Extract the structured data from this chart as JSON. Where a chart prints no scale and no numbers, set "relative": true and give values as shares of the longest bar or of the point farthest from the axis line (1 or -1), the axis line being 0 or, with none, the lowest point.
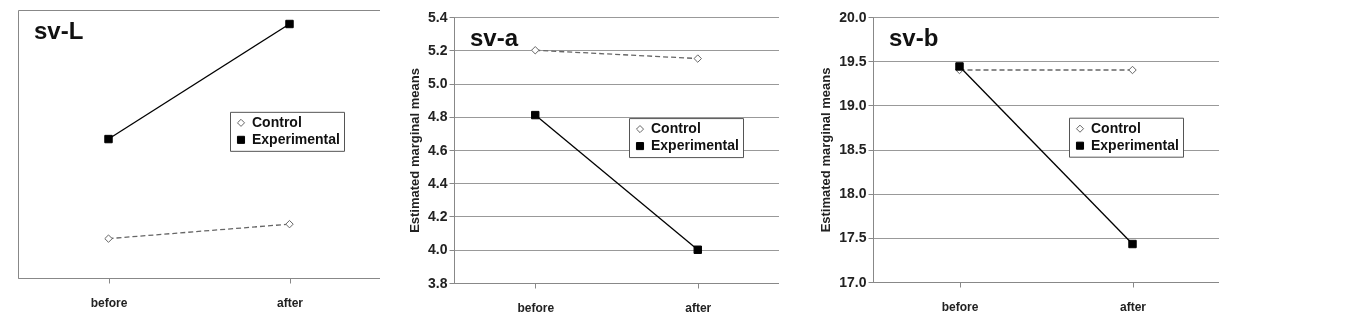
{
  "chart_data": [
    {
      "type": "line",
      "title": "sv-L",
      "categories": [
        "before",
        "after"
      ],
      "relative": true,
      "legend": "right",
      "grid": false,
      "series": [
        {
          "name": "Control",
          "color": "#666666",
          "marker": "diamond",
          "line_style": "dashed",
          "values": [
            0.155,
            0.212
          ]
        },
        {
          "name": "Experimental",
          "color": "#000000",
          "marker": "square",
          "line_style": "solid",
          "values": [
            0.547,
            1
          ]
        }
      ]
    },
    {
      "type": "line",
      "title": "sv-a",
      "ylabel": "Estimated marginal means",
      "categories": [
        "before",
        "after"
      ],
      "ylim": [
        3.8,
        5.4
      ],
      "yticks": [
        {
          "value": 3.8,
          "label": "3.8"
        },
        {
          "value": 4.0,
          "label": "4.0"
        },
        {
          "value": 4.2,
          "label": "4.2"
        },
        {
          "value": 4.4,
          "label": "4.4"
        },
        {
          "value": 4.6,
          "label": "4.6"
        },
        {
          "value": 4.8,
          "label": "4.8"
        },
        {
          "value": 5.0,
          "label": "5.0"
        },
        {
          "value": 5.2,
          "label": "5.2"
        },
        {
          "value": 5.4,
          "label": "5.4"
        }
      ],
      "legend": "right",
      "grid": "y",
      "series": [
        {
          "name": "Control",
          "color": "#666666",
          "marker": "diamond",
          "line_style": "dashed",
          "values": [
            5.2,
            5.15
          ]
        },
        {
          "name": "Experimental",
          "color": "#000000",
          "marker": "square",
          "line_style": "solid",
          "values": [
            4.81,
            4.0
          ]
        }
      ]
    },
    {
      "type": "line",
      "title": "sv-b",
      "ylabel": "Estimated marginal means",
      "categories": [
        "before",
        "after"
      ],
      "ylim": [
        17.0,
        20.0
      ],
      "yticks": [
        {
          "value": 17.0,
          "label": "17.0"
        },
        {
          "value": 17.5,
          "label": "17.5"
        },
        {
          "value": 18.0,
          "label": "18.0"
        },
        {
          "value": 18.5,
          "label": "18.5"
        },
        {
          "value": 19.0,
          "label": "19.0"
        },
        {
          "value": 19.5,
          "label": "19.5"
        },
        {
          "value": 20.0,
          "label": "20.0"
        }
      ],
      "legend": "right",
      "grid": "y",
      "series": [
        {
          "name": "Control",
          "color": "#666666",
          "marker": "diamond",
          "line_style": "dashed",
          "values": [
            19.4,
            19.4
          ]
        },
        {
          "name": "Experimental",
          "color": "#000000",
          "marker": "square",
          "line_style": "solid",
          "values": [
            19.44,
            17.43
          ]
        }
      ]
    }
  ]
}
